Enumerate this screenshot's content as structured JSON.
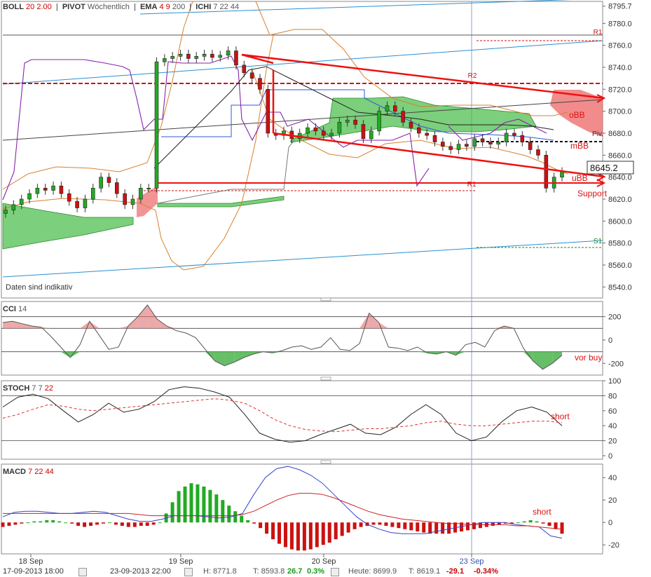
{
  "headers": {
    "main": [
      {
        "name": "BOLL",
        "params": "20",
        "params2": "2.00"
      },
      {
        "name": "PIVOT",
        "params": "Wöchentlich",
        "params2": ""
      },
      {
        "name": "EMA",
        "params": "4",
        "params2": "9",
        "params3": "200"
      },
      {
        "name": "ICHI",
        "params": "7",
        "params2": "22",
        "params3": "44"
      }
    ],
    "cci": {
      "name": "CCI",
      "params": "14"
    },
    "stoch": {
      "name": "STOCH",
      "p1": "7",
      "p2": "7",
      "p3": "22"
    },
    "macd": {
      "name": "MACD",
      "p1": "7",
      "p2": "22",
      "p3": "44"
    }
  },
  "note": "Daten sind indikativ",
  "x_labels": [
    "18 Sep",
    "19 Sep",
    "20 Sep",
    "23 Sep"
  ],
  "pivot_labels": [
    "R1",
    "R2",
    "Piv.",
    "R1",
    "S1"
  ],
  "annotations": {
    "obb": "oBB",
    "mbb": "mBB",
    "ubb": "uBB",
    "support": "Support",
    "vorbuy": "vor buy",
    "short1": "short",
    "short2": "short"
  },
  "current_price": "8645.2",
  "bottom": {
    "from": "17-09-2013 18:00",
    "to": "23-09-2013 22:00",
    "h": "H: 8771.8",
    "t": "T: 8593.8",
    "chg": "26.7",
    "chgp": "0.3%",
    "heute": "Heute: 8699.9",
    "t2": "T: 8619.1",
    "chg2": "-29.1",
    "chgp2": "-0.34%"
  },
  "colors": {
    "up": "#22aa22",
    "down": "#cc1111",
    "cloudUp": "#44bb44",
    "cloudDown": "#ee6666",
    "trend": "#ee1111",
    "boll": "#d98030",
    "price": "#222222",
    "purple": "#8822aa",
    "blue": "#3355dd"
  },
  "chart_data": [
    {
      "type": "line",
      "title": "",
      "y_ticks": [
        8795.7,
        8780,
        8760,
        8740,
        8720,
        8700,
        8680,
        8660,
        8640,
        8620,
        8600,
        8580,
        8560,
        8540
      ],
      "ylim": [
        8530,
        8800
      ],
      "x_ticks": [
        "18 Sep",
        "19 Sep",
        "20 Sep",
        "23 Sep"
      ],
      "series": [
        {
          "name": "Close",
          "values": [
            8610,
            8615,
            8620,
            8625,
            8630,
            8628,
            8632,
            8625,
            8618,
            8612,
            8620,
            8630,
            8640,
            8635,
            8625,
            8615,
            8620,
            8630,
            8630,
            8745,
            8748,
            8750,
            8752,
            8748,
            8750,
            8752,
            8749,
            8751,
            8755,
            8742,
            8735,
            8730,
            8720,
            8680,
            8678,
            8682,
            8675,
            8680,
            8685,
            8682,
            8678,
            8680,
            8690,
            8692,
            8688,
            8675,
            8682,
            8700,
            8705,
            8700,
            8690,
            8685,
            8680,
            8678,
            8672,
            8668,
            8665,
            8670,
            8668,
            8675,
            8672,
            8670,
            8672,
            8680,
            8678,
            8672,
            8665,
            8660,
            8630,
            8640,
            8645
          ]
        }
      ],
      "current": 8645.2
    },
    {
      "type": "line",
      "title": "",
      "y_ticks": [
        200,
        0,
        -200
      ],
      "ylim": [
        -300,
        330
      ],
      "series": [
        {
          "name": "CCI",
          "values": [
            150,
            160,
            140,
            120,
            110,
            30,
            -60,
            -150,
            -40,
            160,
            40,
            -80,
            -60,
            120,
            200,
            300,
            180,
            120,
            80,
            60,
            20,
            -80,
            -180,
            -220,
            -190,
            -150,
            -120,
            -100,
            -110,
            -90,
            -60,
            -50,
            -80,
            -60,
            20,
            -80,
            -90,
            -30,
            230,
            150,
            -60,
            -70,
            -90,
            -60,
            -110,
            -120,
            -100,
            -130,
            -40,
            -20,
            -60,
            80,
            120,
            100,
            -70,
            -180,
            -250,
            -200,
            -130
          ]
        }
      ]
    },
    {
      "type": "line",
      "title": "",
      "y_ticks": [
        100,
        80,
        60,
        40,
        20,
        0
      ],
      "ylim": [
        0,
        100
      ],
      "series": [
        {
          "name": "%K",
          "values": [
            65,
            78,
            82,
            76,
            60,
            45,
            55,
            70,
            58,
            62,
            72,
            88,
            92,
            90,
            85,
            78,
            55,
            30,
            22,
            18,
            20,
            28,
            35,
            42,
            30,
            28,
            38,
            55,
            68,
            55,
            30,
            20,
            25,
            45,
            60,
            65,
            58,
            40
          ]
        },
        {
          "name": "%D",
          "values": [
            50,
            55,
            62,
            68,
            66,
            62,
            60,
            62,
            64,
            66,
            68,
            70,
            72,
            74,
            76,
            74,
            70,
            60,
            48,
            40,
            35,
            33,
            32,
            34,
            36,
            36,
            38,
            40,
            44,
            46,
            42,
            40,
            40,
            42,
            44,
            46,
            46,
            44
          ]
        }
      ]
    },
    {
      "type": "bar",
      "title": "",
      "y_ticks": [
        40,
        20,
        0,
        -20
      ],
      "ylim": [
        -28,
        52
      ],
      "series": [
        {
          "name": "Histogram",
          "values": [
            -4,
            -3,
            -2,
            -1,
            0,
            1,
            1,
            2,
            2,
            1,
            0,
            -1,
            -3,
            -4,
            -3,
            -2,
            -1,
            0,
            -2,
            -3,
            -4,
            -4,
            -3,
            -3,
            -2,
            0,
            8,
            18,
            28,
            32,
            35,
            34,
            32,
            29,
            25,
            20,
            15,
            10,
            6,
            2,
            -1,
            -5,
            -10,
            -15,
            -19,
            -22,
            -24,
            -25,
            -25,
            -24,
            -22,
            -20,
            -18,
            -15,
            -12,
            -9,
            -6,
            -4,
            -3,
            -2,
            -2,
            -3,
            -4,
            -5,
            -6,
            -7,
            -8,
            -9,
            -10,
            -10,
            -10,
            -10,
            -9,
            -8,
            -7,
            -6,
            -5,
            -4,
            -3,
            -2,
            -1,
            -1,
            0,
            1,
            2,
            1,
            -1,
            -3,
            -6,
            -10
          ]
        },
        {
          "name": "MACD",
          "values": [
            5,
            9,
            10,
            10,
            9,
            8,
            8,
            9,
            10,
            9,
            6,
            3,
            1,
            1,
            3,
            6,
            6,
            6,
            5,
            4,
            5,
            8,
            25,
            40,
            48,
            50,
            47,
            42,
            35,
            25,
            15,
            5,
            -2,
            -6,
            -9,
            -10,
            -10,
            -10,
            -8,
            -6,
            -4,
            -2,
            0,
            0,
            0,
            -2,
            -3,
            -4,
            -12,
            -14
          ]
        },
        {
          "name": "Signal",
          "values": [
            8,
            8,
            8,
            8,
            8,
            8,
            8,
            8,
            8,
            8,
            8,
            8,
            7,
            6,
            6,
            6,
            6,
            6,
            6,
            6,
            6,
            7,
            10,
            15,
            20,
            24,
            26,
            26,
            25,
            22,
            18,
            14,
            10,
            7,
            5,
            3,
            2,
            1,
            0,
            -1,
            -1,
            -2,
            -2,
            -2,
            -2,
            -3,
            -3,
            -4,
            -5,
            -6
          ]
        }
      ]
    }
  ]
}
